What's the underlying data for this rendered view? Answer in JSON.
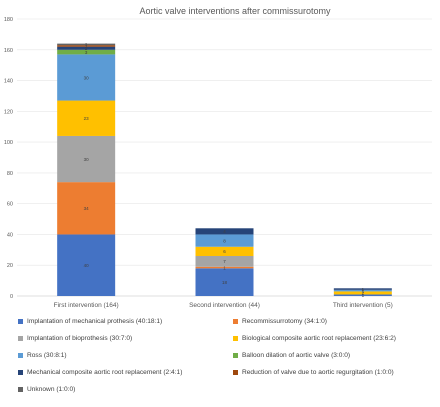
{
  "chart_data": {
    "type": "bar",
    "stacked": true,
    "title": "Aortic valve interventions after commissurotomy",
    "xlabel": "",
    "ylabel": "",
    "ylim": [
      0,
      180
    ],
    "yticks": [
      0,
      20,
      40,
      60,
      80,
      100,
      120,
      140,
      160,
      180
    ],
    "grid": true,
    "legend_position": "bottom",
    "categories": [
      "First intervention (164)",
      "Second intervention (44)",
      "Third intervention (5)"
    ],
    "series": [
      {
        "name": "Implantation of mechanical prothesis (40:18:1)",
        "color": "#4472C4",
        "values": [
          40,
          18,
          1
        ],
        "labels": [
          "40",
          "18",
          "1"
        ]
      },
      {
        "name": "Recommissurrotomy (34:1:0)",
        "color": "#ED7D31",
        "values": [
          34,
          1,
          0
        ],
        "labels": [
          "34",
          "1",
          ""
        ]
      },
      {
        "name": "Implantation of bioprothesis (30:7:0)",
        "color": "#A5A5A5",
        "values": [
          30,
          7,
          0
        ],
        "labels": [
          "30",
          "7",
          ""
        ]
      },
      {
        "name": "Biological composite aortic root replacement (23:6:2)",
        "color": "#FFC000",
        "values": [
          23,
          6,
          2
        ],
        "labels": [
          "23",
          "6",
          "2"
        ]
      },
      {
        "name": "Ross (30:8:1)",
        "color": "#5B9BD5",
        "values": [
          30,
          8,
          1
        ],
        "labels": [
          "30",
          "8",
          "1"
        ]
      },
      {
        "name": "Balloon dilation of aortic valve (3:0:0)",
        "color": "#70AD47",
        "values": [
          3,
          0,
          0
        ],
        "labels": [
          "3",
          "",
          ""
        ]
      },
      {
        "name": "Mechanical composite aortic root replacement (2:4:1)",
        "color": "#264478",
        "values": [
          2,
          4,
          1
        ],
        "labels": [
          "2",
          "4",
          "1"
        ]
      },
      {
        "name": "Reduction of valve due to aortic regurgitation (1:0:0)",
        "color": "#9E480E",
        "values": [
          1,
          0,
          0
        ],
        "labels": [
          "1",
          "",
          ""
        ]
      },
      {
        "name": "Unknown (1:0:0)",
        "color": "#636363",
        "values": [
          1,
          0,
          0
        ],
        "labels": [
          "1",
          "",
          ""
        ]
      }
    ]
  }
}
